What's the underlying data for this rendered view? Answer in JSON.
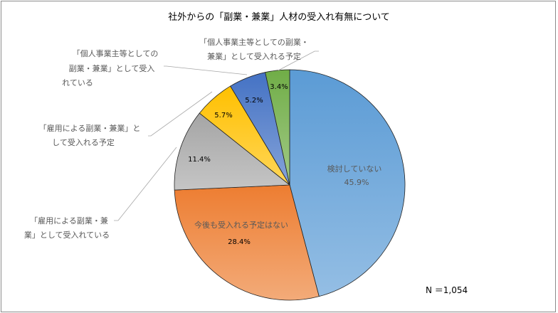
{
  "chart_data": {
    "type": "pie",
    "title": "社外からの「副業・兼業」人材の受入れ有無について",
    "note": "N ＝1,054",
    "slices": [
      {
        "label": "検討していない",
        "value": 45.9,
        "value_label": "45.9%",
        "color": "#5b9bd5"
      },
      {
        "label": "今後も受入れる予定はない",
        "value": 28.4,
        "value_label": "28.4%",
        "color": "#ed7d31"
      },
      {
        "label_lines": [
          "「雇用による副業・兼",
          "業」として受入れている"
        ],
        "value": 11.4,
        "value_label": "11.4%",
        "color": "#a5a5a5"
      },
      {
        "label_lines": [
          "「雇用による副業・兼業」と",
          "して受入れる予定"
        ],
        "value": 5.7,
        "value_label": "5.7%",
        "color": "#ffc000"
      },
      {
        "label_lines": [
          "「個人事業主等としての",
          "副業・兼業」として受入",
          "れている"
        ],
        "value": 5.2,
        "value_label": "5.2%",
        "color": "#4472c4"
      },
      {
        "label_lines": [
          "「個人事業主等としての副業・",
          "兼業」として受入れる予定"
        ],
        "value": 3.4,
        "value_label": "3.4%",
        "color": "#70ad47"
      }
    ]
  }
}
